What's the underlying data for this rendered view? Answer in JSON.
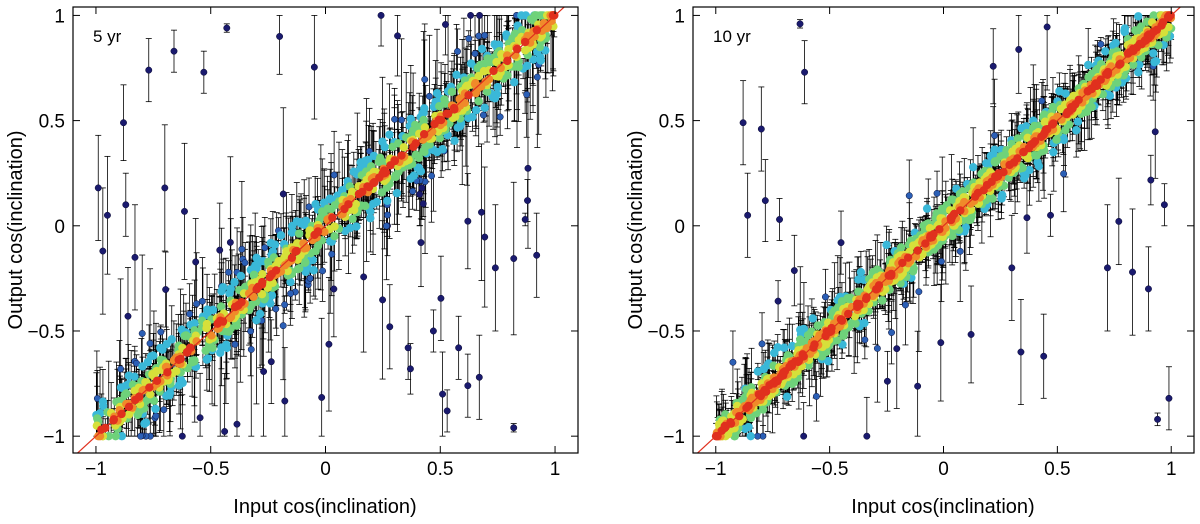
{
  "chart_data": [
    {
      "type": "scatter",
      "panel_label": "5 yr",
      "xlabel": "Input cos(inclination)",
      "ylabel": "Output cos(inclination)",
      "xlim": [
        -1.1,
        1.1
      ],
      "ylim": [
        -1.08,
        1.04
      ],
      "xticks": [
        -1,
        -0.5,
        0,
        0.5,
        1
      ],
      "xtick_labels": [
        "−1",
        "−0.5",
        "0",
        "0.5",
        "1"
      ],
      "yticks": [
        -1,
        -0.5,
        0,
        0.5,
        1
      ],
      "ytick_labels": [
        "−1",
        "−0.5",
        "0",
        "0.5",
        "1"
      ],
      "reference_line": {
        "x": [
          -1.1,
          1.1
        ],
        "y": [
          -1.1,
          1.1
        ],
        "color": "#e0301e"
      },
      "colormap": [
        "#1a1a6e",
        "#2b5fb5",
        "#3ab8d8",
        "#6ed27a",
        "#d6e03a",
        "#f08a2a",
        "#e0301e"
      ],
      "outliers": [
        {
          "x": -0.99,
          "y": 0.18,
          "err": 0.25
        },
        {
          "x": -0.97,
          "y": -0.12,
          "err": 0.3
        },
        {
          "x": -0.95,
          "y": 0.05,
          "err": 0.28
        },
        {
          "x": -0.88,
          "y": 0.49,
          "err": 0.18
        },
        {
          "x": -0.87,
          "y": 0.1,
          "err": 0.15
        },
        {
          "x": -0.83,
          "y": -0.15,
          "err": 0.25
        },
        {
          "x": -0.77,
          "y": 0.74,
          "err": 0.15
        },
        {
          "x": -0.7,
          "y": 0.18,
          "err": 0.3
        },
        {
          "x": -0.66,
          "y": 0.83,
          "err": 0.1
        },
        {
          "x": -0.53,
          "y": 0.73,
          "err": 0.1
        },
        {
          "x": -0.43,
          "y": 0.94,
          "err": 0.02
        },
        {
          "x": -0.2,
          "y": 0.9,
          "err": 0.18
        },
        {
          "x": 0.27,
          "y": 0.0,
          "err": 0.05
        },
        {
          "x": 0.28,
          "y": -0.48,
          "err": 0.2
        },
        {
          "x": 0.36,
          "y": -0.58,
          "err": 0.15
        },
        {
          "x": 0.37,
          "y": -0.68,
          "err": 0.12
        },
        {
          "x": 0.41,
          "y": 0.15,
          "err": 0.15
        },
        {
          "x": 0.42,
          "y": 0.18,
          "err": 0.15
        },
        {
          "x": 0.47,
          "y": -0.5,
          "err": 0.1
        },
        {
          "x": 0.51,
          "y": -0.8,
          "err": 0.2
        },
        {
          "x": 0.53,
          "y": -0.88,
          "err": 0.1
        },
        {
          "x": 0.58,
          "y": -0.58,
          "err": 0.15
        },
        {
          "x": 0.62,
          "y": -0.76,
          "err": 0.15
        },
        {
          "x": 0.67,
          "y": -0.72,
          "err": 0.2
        },
        {
          "x": 0.74,
          "y": -0.2,
          "err": 0.3
        },
        {
          "x": 0.82,
          "y": -0.96,
          "err": 0.02
        },
        {
          "x": 0.87,
          "y": 0.03,
          "err": 0.03
        },
        {
          "x": 0.88,
          "y": 0.12,
          "err": 0.1
        },
        {
          "x": 0.92,
          "y": -0.14,
          "err": 0.2
        }
      ],
      "scatter_model": {
        "n": 900,
        "spread": 0.085,
        "outlier_fraction": 0.09,
        "err_scale": 0.22,
        "seed": 11
      }
    },
    {
      "type": "scatter",
      "panel_label": "10 yr",
      "xlabel": "Input cos(inclination)",
      "ylabel": "Output cos(inclination)",
      "xlim": [
        -1.1,
        1.1
      ],
      "ylim": [
        -1.08,
        1.04
      ],
      "xticks": [
        -1,
        -0.5,
        0,
        0.5,
        1
      ],
      "xtick_labels": [
        "−1",
        "−0.5",
        "0",
        "0.5",
        "1"
      ],
      "yticks": [
        -1,
        -0.5,
        0,
        0.5,
        1
      ],
      "ytick_labels": [
        "−1",
        "−0.5",
        "0",
        "0.5",
        "1"
      ],
      "reference_line": {
        "x": [
          -1.1,
          1.1
        ],
        "y": [
          -1.1,
          1.1
        ],
        "color": "#e0301e"
      },
      "colormap": [
        "#1a1a6e",
        "#2b5fb5",
        "#3ab8d8",
        "#6ed27a",
        "#d6e03a",
        "#f08a2a",
        "#e0301e"
      ],
      "outliers": [
        {
          "x": -0.88,
          "y": 0.49,
          "err": 0.2
        },
        {
          "x": -0.86,
          "y": 0.05,
          "err": 0.2
        },
        {
          "x": -0.8,
          "y": 0.46,
          "err": 0.2
        },
        {
          "x": -0.72,
          "y": 0.03,
          "err": 0.1
        },
        {
          "x": -0.63,
          "y": 0.96,
          "err": 0.02
        },
        {
          "x": -0.61,
          "y": 0.73,
          "err": 0.15
        },
        {
          "x": -0.45,
          "y": -0.08,
          "err": 0.15
        },
        {
          "x": 0.3,
          "y": -0.2,
          "err": 0.25
        },
        {
          "x": 0.34,
          "y": -0.6,
          "err": 0.25
        },
        {
          "x": 0.44,
          "y": -0.62,
          "err": 0.2
        },
        {
          "x": 0.47,
          "y": 0.05,
          "err": 0.1
        },
        {
          "x": 0.72,
          "y": -0.2,
          "err": 0.3
        },
        {
          "x": 0.83,
          "y": -0.22,
          "err": 0.3
        },
        {
          "x": 0.9,
          "y": -0.3,
          "err": 0.2
        },
        {
          "x": 0.94,
          "y": -0.92,
          "err": 0.03
        },
        {
          "x": 0.97,
          "y": 0.1,
          "err": 0.1
        },
        {
          "x": 0.99,
          "y": -0.82,
          "err": 0.15
        }
      ],
      "scatter_model": {
        "n": 1100,
        "spread": 0.055,
        "outlier_fraction": 0.05,
        "err_scale": 0.15,
        "seed": 23
      }
    }
  ]
}
